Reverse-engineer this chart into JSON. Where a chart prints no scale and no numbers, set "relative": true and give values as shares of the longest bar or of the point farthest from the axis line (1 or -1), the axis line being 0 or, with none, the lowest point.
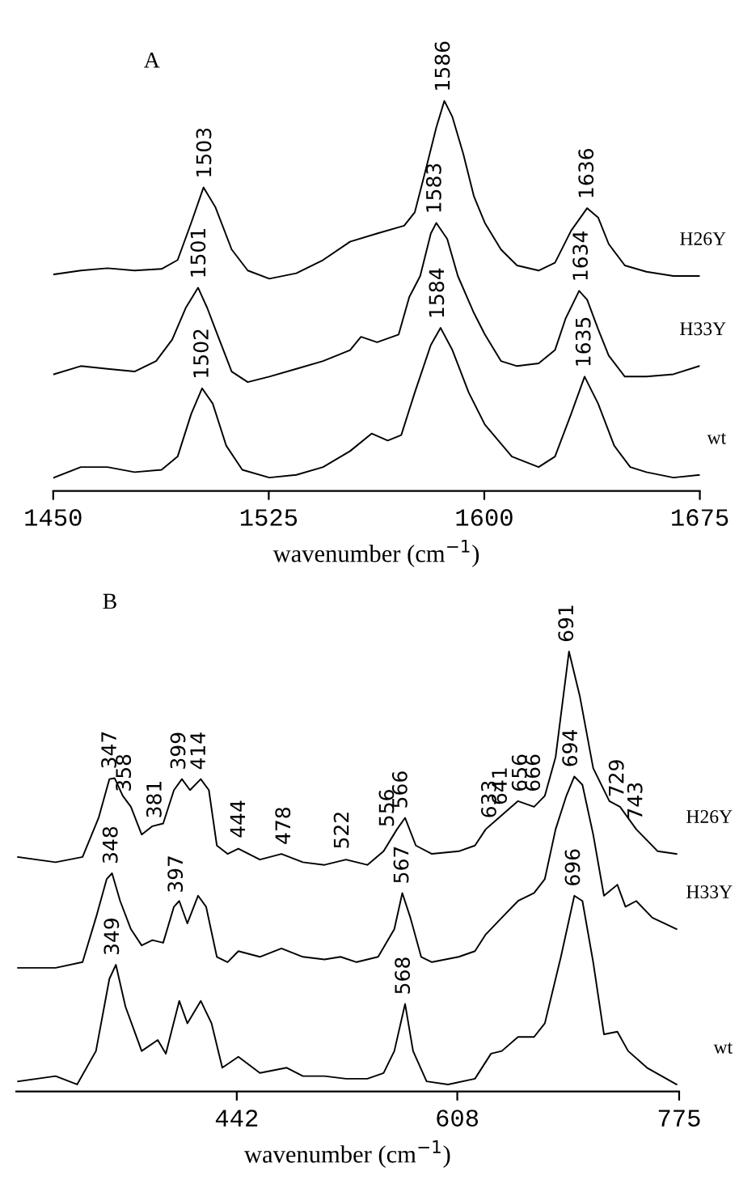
{
  "chart_data": [
    {
      "type": "line",
      "title": "A",
      "xlabel": "wavenumber (cm$^{−1}$)",
      "relative": true,
      "xlim": [
        1450,
        1675
      ],
      "xticks": [
        1450,
        1525,
        1600,
        1675
      ],
      "tick_labels": "x",
      "grid": false,
      "legend": false,
      "line_style": "solid",
      "marker": "none",
      "series": [
        {
          "name": "H26Y",
          "color": "#000000",
          "x": [
            1450.2,
            1459.6,
            1468.9,
            1478.3,
            1487.7,
            1493.3,
            1498.0,
            1502.3,
            1506.4,
            1512.1,
            1517.7,
            1525.2,
            1534.6,
            1543.9,
            1553.3,
            1562.7,
            1572.1,
            1575.8,
            1579.6,
            1583.3,
            1586.1,
            1588.9,
            1592.7,
            1596.4,
            1600.2,
            1605.8,
            1611.4,
            1618.9,
            1624.6,
            1630.2,
            1635.8,
            1639.6,
            1643.3,
            1648.9,
            1656.4,
            1665.8,
            1674.8
          ],
          "values": [
            0.555,
            0.565,
            0.571,
            0.565,
            0.569,
            0.592,
            0.687,
            0.778,
            0.728,
            0.619,
            0.565,
            0.544,
            0.558,
            0.592,
            0.639,
            0.66,
            0.68,
            0.714,
            0.823,
            0.932,
            1.0,
            0.959,
            0.864,
            0.755,
            0.687,
            0.619,
            0.578,
            0.565,
            0.585,
            0.667,
            0.725,
            0.701,
            0.633,
            0.578,
            0.562,
            0.551,
            0.551
          ]
        },
        {
          "name": "H33Y",
          "color": "#000000",
          "x": [
            1450.2,
            1459.6,
            1468.9,
            1478.3,
            1485.8,
            1491.4,
            1496.1,
            1500.4,
            1503.6,
            1506.4,
            1512.1,
            1517.7,
            1525.2,
            1534.6,
            1543.9,
            1553.3,
            1557.1,
            1562.7,
            1570.2,
            1573.9,
            1577.7,
            1581.4,
            1583.3,
            1587.1,
            1590.8,
            1596.4,
            1600.2,
            1605.8,
            1611.4,
            1618.9,
            1624.6,
            1628.3,
            1633.0,
            1635.8,
            1639.6,
            1643.3,
            1648.9,
            1656.4,
            1665.8,
            1674.8
          ],
          "values": [
            0.299,
            0.32,
            0.313,
            0.306,
            0.333,
            0.388,
            0.469,
            0.521,
            0.469,
            0.415,
            0.306,
            0.279,
            0.293,
            0.313,
            0.333,
            0.361,
            0.395,
            0.381,
            0.401,
            0.497,
            0.551,
            0.66,
            0.687,
            0.646,
            0.551,
            0.456,
            0.401,
            0.333,
            0.32,
            0.327,
            0.361,
            0.442,
            0.513,
            0.49,
            0.415,
            0.347,
            0.293,
            0.293,
            0.299,
            0.32
          ]
        },
        {
          "name": "wt",
          "color": "#000000",
          "x": [
            1450.2,
            1459.6,
            1468.9,
            1478.3,
            1487.7,
            1493.3,
            1498.0,
            1501.8,
            1505.5,
            1510.2,
            1515.8,
            1525.2,
            1534.6,
            1543.9,
            1553.3,
            1560.8,
            1566.4,
            1571.1,
            1575.8,
            1581.4,
            1584.8,
            1588.9,
            1594.6,
            1600.2,
            1609.6,
            1618.9,
            1624.6,
            1630.2,
            1634.9,
            1639.6,
            1645.2,
            1650.8,
            1656.4,
            1665.8,
            1674.8
          ],
          "values": [
            0.034,
            0.061,
            0.061,
            0.048,
            0.054,
            0.088,
            0.197,
            0.263,
            0.224,
            0.116,
            0.054,
            0.034,
            0.041,
            0.061,
            0.102,
            0.147,
            0.129,
            0.143,
            0.252,
            0.374,
            0.418,
            0.361,
            0.252,
            0.17,
            0.088,
            0.061,
            0.088,
            0.197,
            0.293,
            0.224,
            0.116,
            0.061,
            0.048,
            0.034,
            0.041
          ]
        }
      ],
      "annotations": [
        {
          "text": "1503",
          "x": 1503,
          "y": 0.778
        },
        {
          "text": "1586",
          "x": 1586,
          "y": 1.0
        },
        {
          "text": "1636",
          "x": 1636,
          "y": 0.725
        },
        {
          "text": "1501",
          "x": 1501,
          "y": 0.521
        },
        {
          "text": "1583",
          "x": 1583,
          "y": 0.687
        },
        {
          "text": "1634",
          "x": 1634,
          "y": 0.513
        },
        {
          "text": "1502",
          "x": 1502,
          "y": 0.263
        },
        {
          "text": "1584",
          "x": 1584,
          "y": 0.418
        },
        {
          "text": "1635",
          "x": 1635,
          "y": 0.293
        }
      ]
    },
    {
      "type": "line",
      "title": "B",
      "xlabel": "wavenumber (cm$^{−1}$)",
      "relative": true,
      "xlim": [
        276,
        775
      ],
      "xticks": [
        442,
        608,
        775
      ],
      "tick_labels": "x",
      "grid": false,
      "legend": false,
      "line_style": "solid",
      "marker": "none",
      "series": [
        {
          "name": "H26Y",
          "color": "#000000",
          "x": [
            277.3,
            305.6,
            325.9,
            338,
            346.1,
            350.1,
            356.2,
            362.3,
            370.4,
            378.5,
            386.6,
            394.7,
            400.7,
            406.8,
            414.9,
            421,
            427,
            435.1,
            443.2,
            459.4,
            475.6,
            491.8,
            508,
            524.2,
            540.3,
            552.5,
            562.6,
            568.7,
            576.8,
            588.9,
            609.1,
            621.3,
            629.4,
            641.5,
            653.7,
            665.8,
            673.9,
            682,
            692.1,
            700.2,
            710.3,
            722.5,
            730.5,
            742.7,
            758.9,
            773
          ],
          "values": [
            0.533,
            0.521,
            0.533,
            0.622,
            0.71,
            0.712,
            0.672,
            0.647,
            0.584,
            0.603,
            0.609,
            0.685,
            0.71,
            0.685,
            0.71,
            0.685,
            0.559,
            0.54,
            0.552,
            0.527,
            0.54,
            0.521,
            0.515,
            0.527,
            0.515,
            0.546,
            0.596,
            0.622,
            0.559,
            0.54,
            0.546,
            0.559,
            0.596,
            0.628,
            0.66,
            0.647,
            0.672,
            0.76,
            1.0,
            0.899,
            0.735,
            0.66,
            0.647,
            0.596,
            0.546,
            0.54
          ]
        },
        {
          "name": "H33Y",
          "color": "#000000",
          "x": [
            277.3,
            305.6,
            325.9,
            336,
            344.1,
            348.1,
            354.2,
            362.3,
            370.4,
            378.5,
            386.6,
            394.7,
            398.7,
            404.8,
            412.9,
            418.9,
            427,
            435.1,
            443.2,
            459.4,
            475.6,
            491.8,
            508,
            520.1,
            532.2,
            548.4,
            560.6,
            566.6,
            572.7,
            580.8,
            588.9,
            609.1,
            621.3,
            629.4,
            641.5,
            653.7,
            665.8,
            673.9,
            682,
            690.1,
            696.1,
            702.2,
            710.3,
            718.4,
            728.5,
            734.6,
            742.7,
            754.8,
            773
          ],
          "values": [
            0.281,
            0.281,
            0.294,
            0.395,
            0.483,
            0.496,
            0.433,
            0.369,
            0.332,
            0.344,
            0.338,
            0.42,
            0.433,
            0.382,
            0.445,
            0.42,
            0.306,
            0.294,
            0.319,
            0.306,
            0.325,
            0.306,
            0.3,
            0.306,
            0.294,
            0.306,
            0.369,
            0.451,
            0.395,
            0.306,
            0.294,
            0.306,
            0.319,
            0.357,
            0.395,
            0.433,
            0.451,
            0.483,
            0.596,
            0.672,
            0.716,
            0.697,
            0.584,
            0.445,
            0.47,
            0.42,
            0.433,
            0.395,
            0.369
          ]
        },
        {
          "name": "wt",
          "color": "#000000",
          "x": [
            277.3,
            305.6,
            321.8,
            336,
            346.1,
            351,
            358.2,
            370.4,
            382.5,
            388.6,
            398.7,
            404.8,
            414.9,
            423,
            431.1,
            443.2,
            459.4,
            479.6,
            491.8,
            508,
            524.2,
            540.3,
            552.5,
            560.6,
            568.7,
            574.7,
            584.9,
            601,
            621.3,
            633.4,
            641.5,
            653.7,
            665.8,
            673.9,
            686,
            696.1,
            702.2,
            710.3,
            718.4,
            728.5,
            736.6,
            750.8,
            773
          ],
          "values": [
            0.023,
            0.035,
            0.016,
            0.092,
            0.256,
            0.288,
            0.193,
            0.092,
            0.117,
            0.086,
            0.206,
            0.155,
            0.206,
            0.155,
            0.054,
            0.079,
            0.042,
            0.054,
            0.035,
            0.035,
            0.029,
            0.029,
            0.042,
            0.092,
            0.199,
            0.092,
            0.023,
            0.016,
            0.029,
            0.086,
            0.092,
            0.124,
            0.124,
            0.155,
            0.306,
            0.445,
            0.433,
            0.294,
            0.13,
            0.136,
            0.092,
            0.054,
            0.016
          ]
        }
      ],
      "annotations": [
        {
          "text": "347",
          "x": 347,
          "y": 0.712
        },
        {
          "text": "358",
          "x": 358,
          "y": 0.66
        },
        {
          "text": "381",
          "x": 381,
          "y": 0.6
        },
        {
          "text": "399",
          "x": 399,
          "y": 0.71
        },
        {
          "text": "414",
          "x": 414,
          "y": 0.71
        },
        {
          "text": "444",
          "x": 444,
          "y": 0.555
        },
        {
          "text": "478",
          "x": 478,
          "y": 0.54
        },
        {
          "text": "522",
          "x": 522,
          "y": 0.53
        },
        {
          "text": "556",
          "x": 556,
          "y": 0.58
        },
        {
          "text": "566",
          "x": 566,
          "y": 0.622
        },
        {
          "text": "633",
          "x": 633,
          "y": 0.6
        },
        {
          "text": "641",
          "x": 641,
          "y": 0.63
        },
        {
          "text": "656",
          "x": 656,
          "y": 0.66
        },
        {
          "text": "666",
          "x": 666,
          "y": 0.66
        },
        {
          "text": "691",
          "x": 691,
          "y": 1.0
        },
        {
          "text": "694",
          "x": 694,
          "y": 0.716
        },
        {
          "text": "729",
          "x": 729,
          "y": 0.648
        },
        {
          "text": "743",
          "x": 743,
          "y": 0.596
        },
        {
          "text": "348",
          "x": 348,
          "y": 0.496
        },
        {
          "text": "397",
          "x": 397,
          "y": 0.43
        },
        {
          "text": "567",
          "x": 567,
          "y": 0.451
        },
        {
          "text": "349",
          "x": 349,
          "y": 0.288
        },
        {
          "text": "568",
          "x": 568,
          "y": 0.199
        },
        {
          "text": "696",
          "x": 696,
          "y": 0.445
        }
      ]
    }
  ]
}
